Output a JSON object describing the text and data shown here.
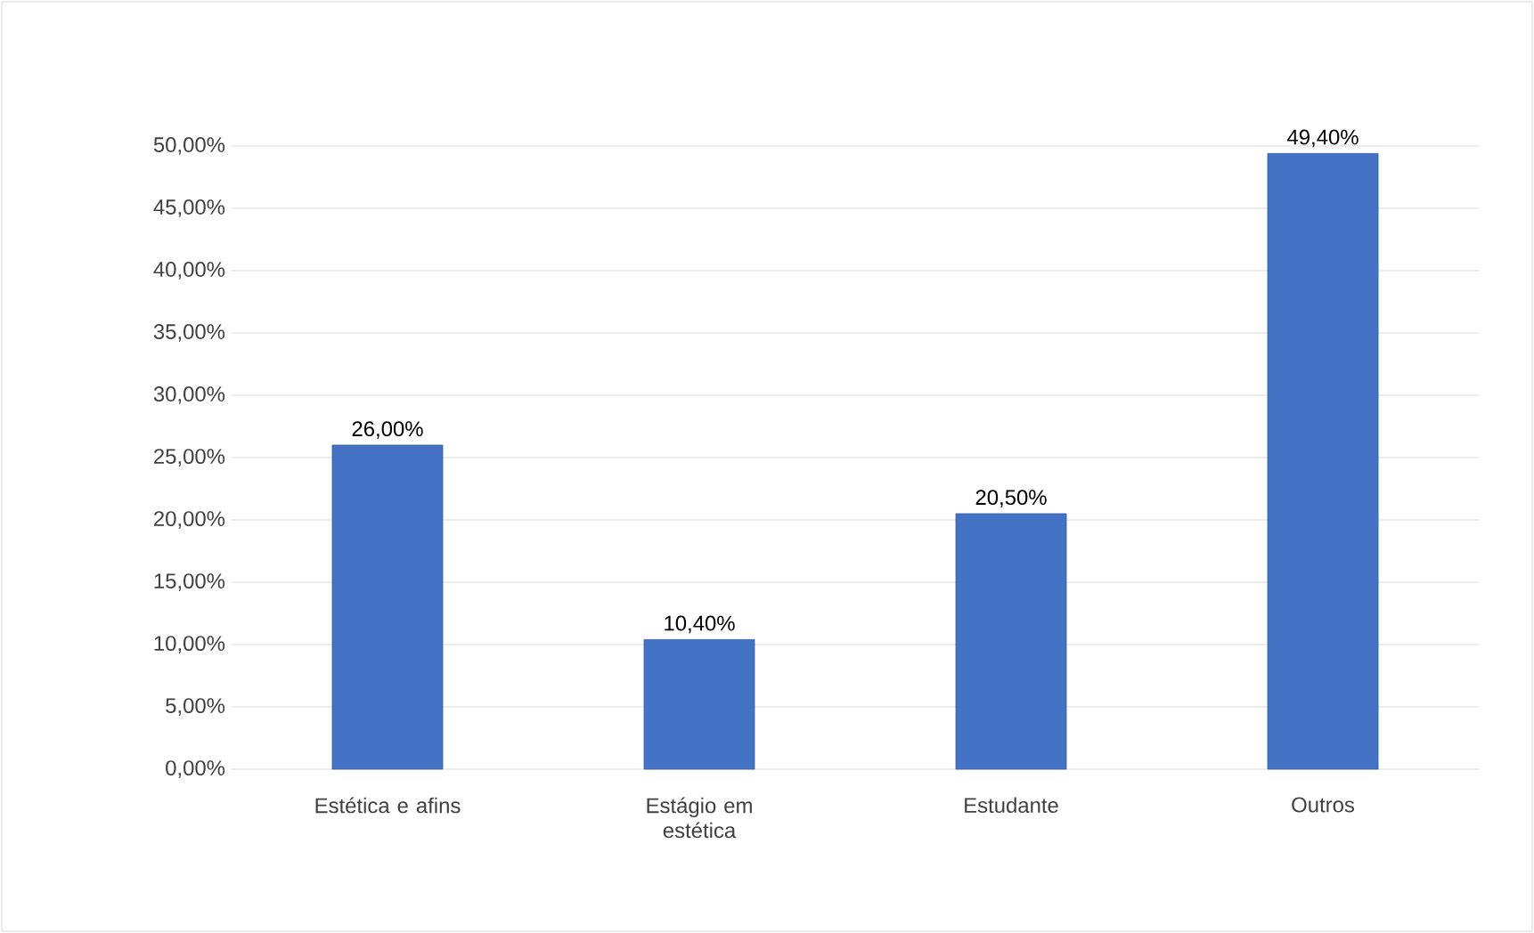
{
  "chart_data": {
    "type": "bar",
    "categories": [
      "Estética e afins",
      "Estágio em estética",
      "Estudante",
      "Outros"
    ],
    "values": [
      26.0,
      10.4,
      20.5,
      49.4
    ],
    "value_labels": [
      "26,00%",
      "10,40%",
      "20,50%",
      "49,40%"
    ],
    "color": "#4472c4",
    "ylim": [
      0,
      50
    ],
    "yticks": [
      {
        "value": 0,
        "label": "0,00%"
      },
      {
        "value": 5,
        "label": "5,00%"
      },
      {
        "value": 10,
        "label": "10,00%"
      },
      {
        "value": 15,
        "label": "15,00%"
      },
      {
        "value": 20,
        "label": "20,00%"
      },
      {
        "value": 25,
        "label": "25,00%"
      },
      {
        "value": 30,
        "label": "30,00%"
      },
      {
        "value": 35,
        "label": "35,00%"
      },
      {
        "value": 40,
        "label": "40,00%"
      },
      {
        "value": 45,
        "label": "45,00%"
      },
      {
        "value": 50,
        "label": "50,00%"
      }
    ],
    "grid": "y"
  }
}
